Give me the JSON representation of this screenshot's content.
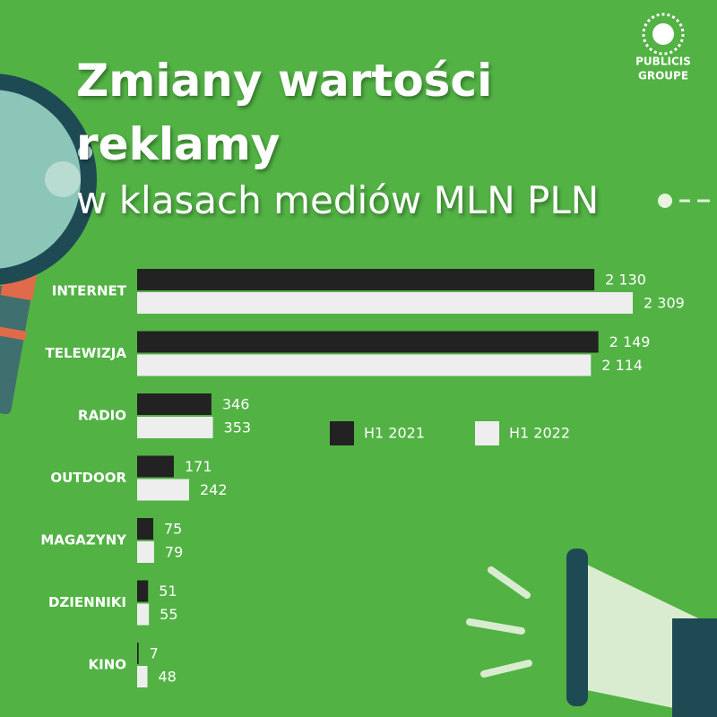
{
  "chart_data": {
    "type": "bar",
    "orientation": "horizontal",
    "title": [
      "Zmiany wartości",
      "reklamy"
    ],
    "subtitle": "w klasach mediów MLN PLN",
    "brand": [
      "PUBLICIS",
      "GROUPE"
    ],
    "categories": [
      "INTERNET",
      "TELEWIZJA",
      "RADIO",
      "OUTDOOR",
      "MAGAZYNY",
      "DZIENNIKI",
      "KINO"
    ],
    "series": [
      {
        "name": "H1 2021",
        "color": "#222222",
        "values": [
          2130,
          2149,
          346,
          171,
          75,
          51,
          7
        ],
        "value_labels": [
          "2 130",
          "2 149",
          "346",
          "171",
          "75",
          "51",
          "7"
        ]
      },
      {
        "name": "H1 2022",
        "color": "#eeeeee",
        "values": [
          2309,
          2114,
          353,
          242,
          79,
          55,
          48
        ],
        "value_labels": [
          "2 309",
          "2 114",
          "353",
          "242",
          "79",
          "55",
          "48"
        ]
      }
    ]
  }
}
